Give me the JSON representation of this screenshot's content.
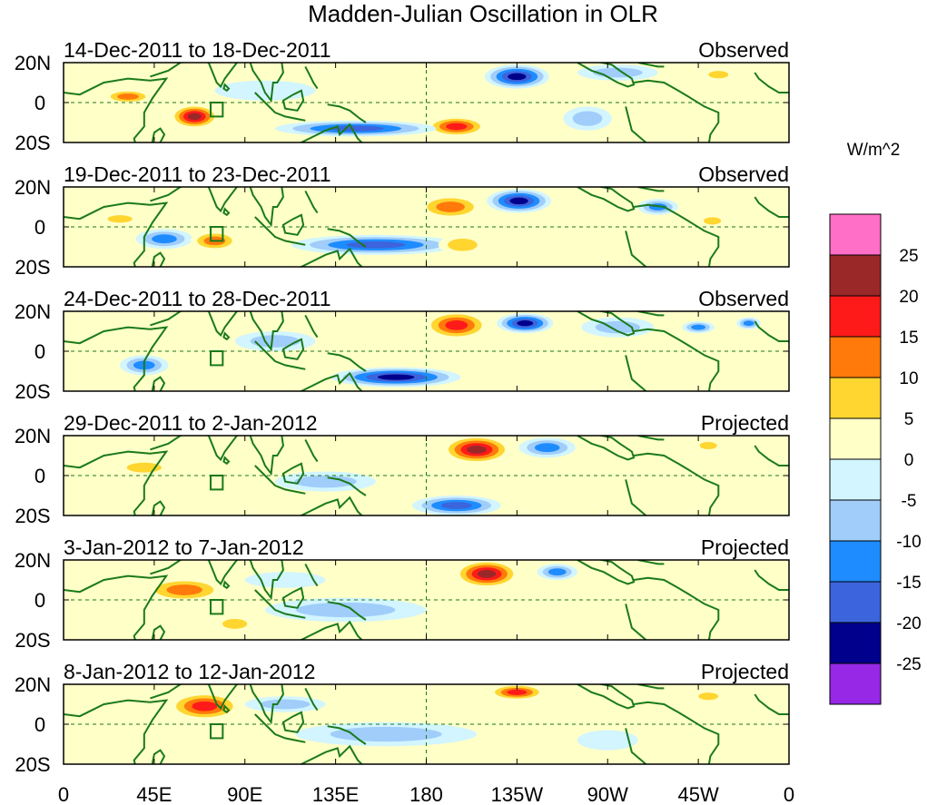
{
  "chart_data": {
    "type": "heatmap",
    "title": "Madden-Julian Oscillation in OLR",
    "units": "W/m^2",
    "x_ticks": [
      "0",
      "45E",
      "90E",
      "135E",
      "180",
      "135W",
      "90W",
      "45W",
      "0"
    ],
    "y_ticks": [
      "20N",
      "0",
      "20S"
    ],
    "colorbar": {
      "levels": [
        "25",
        "20",
        "15",
        "10",
        "5",
        "0",
        "-5",
        "-10",
        "-15",
        "-20",
        "-25"
      ],
      "colors": [
        "#ff6ec7",
        "#9a2828",
        "#ff1a1a",
        "#ff7a0a",
        "#ffd530",
        "#ffffc8",
        "#d2f5ff",
        "#a0cdfa",
        "#1e8cff",
        "#3c64dc",
        "#00008c",
        "#9628e6"
      ]
    },
    "panels": [
      {
        "date_range": "14-Dec-2011 to 18-Dec-2011",
        "status": "Observed",
        "anomalies": [
          {
            "lon": 32,
            "lat": 3,
            "value": 12,
            "rx": 12,
            "ry": 3.5
          },
          {
            "lon": 65,
            "lat": -7,
            "value": 22,
            "rx": 12,
            "ry": 6
          },
          {
            "lon": 195,
            "lat": -12,
            "value": 19,
            "rx": 15,
            "ry": 5
          },
          {
            "lon": 225,
            "lat": 13,
            "value": -25,
            "rx": 16,
            "ry": 6
          },
          {
            "lon": 145,
            "lat": -13,
            "value": -16,
            "rx": 40,
            "ry": 4
          },
          {
            "lon": 260,
            "lat": -8,
            "value": -7,
            "rx": 12,
            "ry": 6
          },
          {
            "lon": 275,
            "lat": 15,
            "value": -6,
            "rx": 20,
            "ry": 4
          },
          {
            "lon": 100,
            "lat": 6,
            "value": -5,
            "rx": 25,
            "ry": 5
          },
          {
            "lon": 325,
            "lat": 14,
            "value": 7,
            "rx": 8,
            "ry": 3
          }
        ]
      },
      {
        "date_range": "19-Dec-2011 to 23-Dec-2011",
        "status": "Observed",
        "anomalies": [
          {
            "lon": 28,
            "lat": 4,
            "value": 8,
            "rx": 10,
            "ry": 3
          },
          {
            "lon": 50,
            "lat": -6,
            "value": -12,
            "rx": 14,
            "ry": 5
          },
          {
            "lon": 75,
            "lat": -7,
            "value": 12,
            "rx": 12,
            "ry": 5
          },
          {
            "lon": 192,
            "lat": 10,
            "value": 15,
            "rx": 16,
            "ry": 6
          },
          {
            "lon": 226,
            "lat": 13,
            "value": -25,
            "rx": 16,
            "ry": 6
          },
          {
            "lon": 155,
            "lat": -9,
            "value": -18,
            "rx": 42,
            "ry": 5
          },
          {
            "lon": 198,
            "lat": -9,
            "value": 10,
            "rx": 12,
            "ry": 5
          },
          {
            "lon": 295,
            "lat": 10,
            "value": -14,
            "rx": 10,
            "ry": 4
          },
          {
            "lon": 322,
            "lat": 3,
            "value": 7,
            "rx": 7,
            "ry": 3
          }
        ]
      },
      {
        "date_range": "24-Dec-2011 to 28-Dec-2011",
        "status": "Observed",
        "anomalies": [
          {
            "lon": 40,
            "lat": -7,
            "value": -15,
            "rx": 12,
            "ry": 5
          },
          {
            "lon": 195,
            "lat": 13,
            "value": 19,
            "rx": 16,
            "ry": 7
          },
          {
            "lon": 229,
            "lat": 14,
            "value": -23,
            "rx": 14,
            "ry": 5
          },
          {
            "lon": 165,
            "lat": -13,
            "value": -22,
            "rx": 32,
            "ry": 5
          },
          {
            "lon": 275,
            "lat": 12,
            "value": -7,
            "rx": 18,
            "ry": 5
          },
          {
            "lon": 315,
            "lat": 12,
            "value": -12,
            "rx": 8,
            "ry": 3
          },
          {
            "lon": 340,
            "lat": 14,
            "value": -11,
            "rx": 6,
            "ry": 3
          },
          {
            "lon": 105,
            "lat": 5,
            "value": -6,
            "rx": 20,
            "ry": 5
          }
        ]
      },
      {
        "date_range": "29-Dec-2011 to 2-Jan-2012",
        "status": "Projected",
        "anomalies": [
          {
            "lon": 40,
            "lat": 4,
            "value": 7,
            "rx": 14,
            "ry": 4
          },
          {
            "lon": 205,
            "lat": 13,
            "value": 21,
            "rx": 17,
            "ry": 7
          },
          {
            "lon": 240,
            "lat": 14,
            "value": -13,
            "rx": 14,
            "ry": 5
          },
          {
            "lon": 195,
            "lat": -15,
            "value": -17,
            "rx": 22,
            "ry": 5
          },
          {
            "lon": 130,
            "lat": -3,
            "value": -7,
            "rx": 25,
            "ry": 5
          },
          {
            "lon": 320,
            "lat": 15,
            "value": 9,
            "rx": 7,
            "ry": 3
          },
          {
            "lon": 80,
            "lat": -10,
            "value": 5,
            "rx": 10,
            "ry": 4
          }
        ]
      },
      {
        "date_range": "3-Jan-2012 to 7-Jan-2012",
        "status": "Projected",
        "anomalies": [
          {
            "lon": 60,
            "lat": 5,
            "value": 12,
            "rx": 20,
            "ry": 6
          },
          {
            "lon": 210,
            "lat": 13,
            "value": 22,
            "rx": 16,
            "ry": 7
          },
          {
            "lon": 245,
            "lat": 14,
            "value": -12,
            "rx": 10,
            "ry": 4
          },
          {
            "lon": 140,
            "lat": -5,
            "value": -8,
            "rx": 40,
            "ry": 6
          },
          {
            "lon": 110,
            "lat": 10,
            "value": -5,
            "rx": 20,
            "ry": 4
          },
          {
            "lon": 85,
            "lat": -12,
            "value": 6,
            "rx": 10,
            "ry": 4
          }
        ]
      },
      {
        "date_range": "8-Jan-2012 to 12-Jan-2012",
        "status": "Projected",
        "anomalies": [
          {
            "lon": 70,
            "lat": 9,
            "value": 20,
            "rx": 18,
            "ry": 7
          },
          {
            "lon": 225,
            "lat": 16,
            "value": 17,
            "rx": 14,
            "ry": 4
          },
          {
            "lon": 160,
            "lat": -5,
            "value": -7,
            "rx": 45,
            "ry": 6
          },
          {
            "lon": 110,
            "lat": 10,
            "value": -6,
            "rx": 20,
            "ry": 4
          },
          {
            "lon": 320,
            "lat": 14,
            "value": 6,
            "rx": 8,
            "ry": 3
          },
          {
            "lon": 270,
            "lat": -8,
            "value": -5,
            "rx": 15,
            "ry": 5
          }
        ]
      }
    ]
  }
}
